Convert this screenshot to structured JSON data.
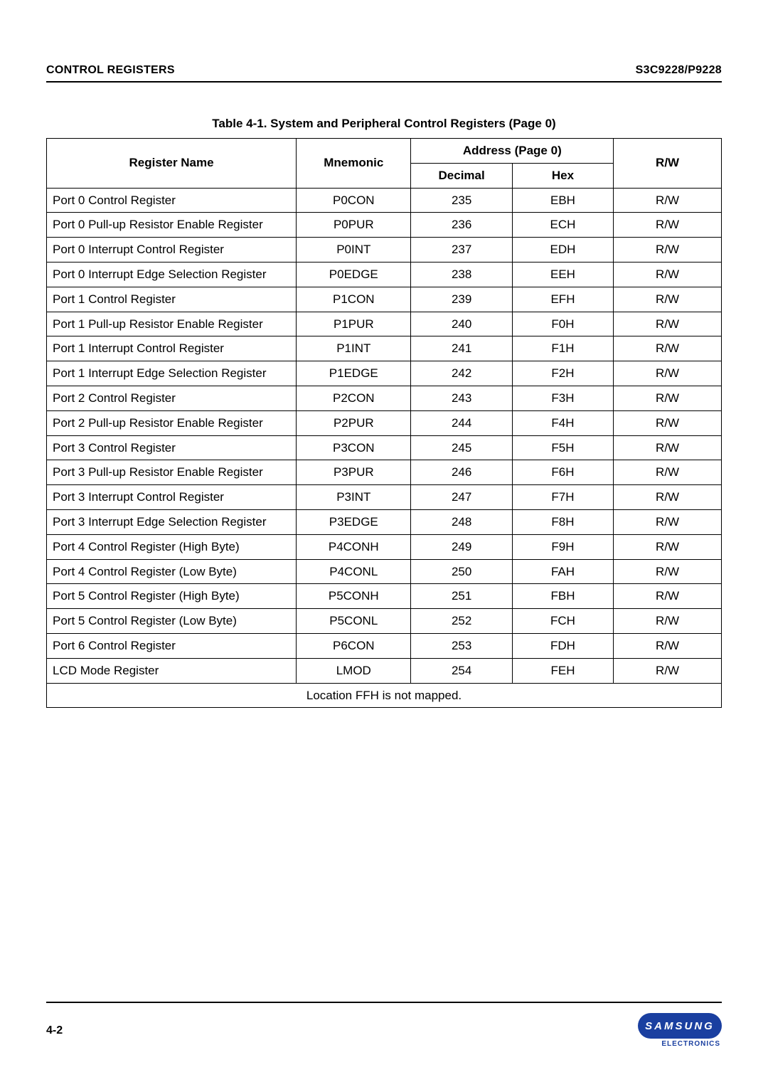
{
  "header": {
    "left": "CONTROL REGISTERS",
    "right": "S3C9228/P9228"
  },
  "table": {
    "caption": "Table 4-1. System and Peripheral Control Registers (Page 0)",
    "columns": {
      "register_name": "Register Name",
      "mnemonic": "Mnemonic",
      "address_group": "Address (Page 0)",
      "decimal": "Decimal",
      "hex": "Hex",
      "rw": "R/W"
    },
    "rows": [
      {
        "name": "Port 0 Control Register",
        "mnemonic": "P0CON",
        "decimal": "235",
        "hex": "EBH",
        "rw": "R/W"
      },
      {
        "name": "Port 0 Pull-up Resistor Enable Register",
        "mnemonic": "P0PUR",
        "decimal": "236",
        "hex": "ECH",
        "rw": "R/W"
      },
      {
        "name": "Port 0 Interrupt Control Register",
        "mnemonic": "P0INT",
        "decimal": "237",
        "hex": "EDH",
        "rw": "R/W"
      },
      {
        "name": "Port 0 Interrupt Edge Selection Register",
        "mnemonic": "P0EDGE",
        "decimal": "238",
        "hex": "EEH",
        "rw": "R/W"
      },
      {
        "name": "Port 1 Control Register",
        "mnemonic": "P1CON",
        "decimal": "239",
        "hex": "EFH",
        "rw": "R/W"
      },
      {
        "name": "Port 1 Pull-up Resistor Enable Register",
        "mnemonic": "P1PUR",
        "decimal": "240",
        "hex": "F0H",
        "rw": "R/W"
      },
      {
        "name": "Port 1 Interrupt Control Register",
        "mnemonic": "P1INT",
        "decimal": "241",
        "hex": "F1H",
        "rw": "R/W"
      },
      {
        "name": "Port 1 Interrupt Edge Selection Register",
        "mnemonic": "P1EDGE",
        "decimal": "242",
        "hex": "F2H",
        "rw": "R/W"
      },
      {
        "name": "Port 2 Control Register",
        "mnemonic": "P2CON",
        "decimal": "243",
        "hex": "F3H",
        "rw": "R/W"
      },
      {
        "name": "Port 2 Pull-up Resistor Enable Register",
        "mnemonic": "P2PUR",
        "decimal": "244",
        "hex": "F4H",
        "rw": "R/W"
      },
      {
        "name": "Port 3 Control Register",
        "mnemonic": "P3CON",
        "decimal": "245",
        "hex": "F5H",
        "rw": "R/W"
      },
      {
        "name": "Port 3 Pull-up Resistor Enable Register",
        "mnemonic": "P3PUR",
        "decimal": "246",
        "hex": "F6H",
        "rw": "R/W"
      },
      {
        "name": "Port 3 Interrupt Control Register",
        "mnemonic": "P3INT",
        "decimal": "247",
        "hex": "F7H",
        "rw": "R/W"
      },
      {
        "name": "Port 3 Interrupt Edge Selection Register",
        "mnemonic": "P3EDGE",
        "decimal": "248",
        "hex": "F8H",
        "rw": "R/W"
      },
      {
        "name": "Port 4 Control Register (High Byte)",
        "mnemonic": "P4CONH",
        "decimal": "249",
        "hex": "F9H",
        "rw": "R/W"
      },
      {
        "name": "Port 4 Control Register (Low Byte)",
        "mnemonic": "P4CONL",
        "decimal": "250",
        "hex": "FAH",
        "rw": "R/W"
      },
      {
        "name": "Port 5 Control Register (High Byte)",
        "mnemonic": "P5CONH",
        "decimal": "251",
        "hex": "FBH",
        "rw": "R/W"
      },
      {
        "name": "Port 5 Control Register (Low Byte)",
        "mnemonic": "P5CONL",
        "decimal": "252",
        "hex": "FCH",
        "rw": "R/W"
      },
      {
        "name": "Port 6 Control Register",
        "mnemonic": "P6CON",
        "decimal": "253",
        "hex": "FDH",
        "rw": "R/W"
      },
      {
        "name": "LCD Mode Register",
        "mnemonic": "LMOD",
        "decimal": "254",
        "hex": "FEH",
        "rw": "R/W"
      }
    ],
    "footnote": "Location FFH is not mapped."
  },
  "footer": {
    "page_number": "4-2",
    "logo_text": "SAMSUNG",
    "logo_sub": "ELECTRONICS",
    "logo_bg": "#1a3fa0",
    "logo_fg": "#ffffff"
  }
}
